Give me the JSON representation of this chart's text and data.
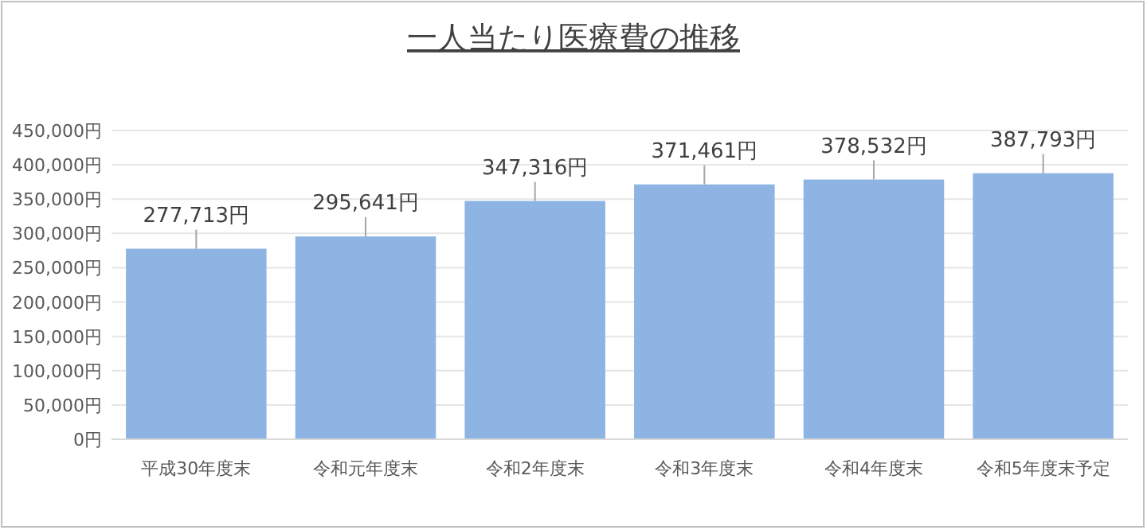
{
  "chart_data": {
    "type": "bar",
    "title": "一人当たり医療費の推移",
    "categories": [
      "平成30年度末",
      "令和元年度末",
      "令和2年度末",
      "令和3年度末",
      "令和4年度末",
      "令和5年度末予定"
    ],
    "values": [
      277713,
      295641,
      347316,
      371461,
      378532,
      387793
    ],
    "value_labels": [
      "277,713円",
      "295,641円",
      "347,316円",
      "371,461円",
      "378,532円",
      "387,793円"
    ],
    "color": "#8db4e2",
    "ylim": [
      0,
      450000
    ],
    "yticks": [
      {
        "value": 0,
        "label": "0円"
      },
      {
        "value": 50000,
        "label": "50,000円"
      },
      {
        "value": 100000,
        "label": "100,000円"
      },
      {
        "value": 150000,
        "label": "150,000円"
      },
      {
        "value": 200000,
        "label": "200,000円"
      },
      {
        "value": 250000,
        "label": "250,000円"
      },
      {
        "value": 300000,
        "label": "300,000円"
      },
      {
        "value": 350000,
        "label": "350,000円"
      },
      {
        "value": 400000,
        "label": "400,000円"
      },
      {
        "value": 450000,
        "label": "450,000円"
      }
    ],
    "grid": "y"
  }
}
